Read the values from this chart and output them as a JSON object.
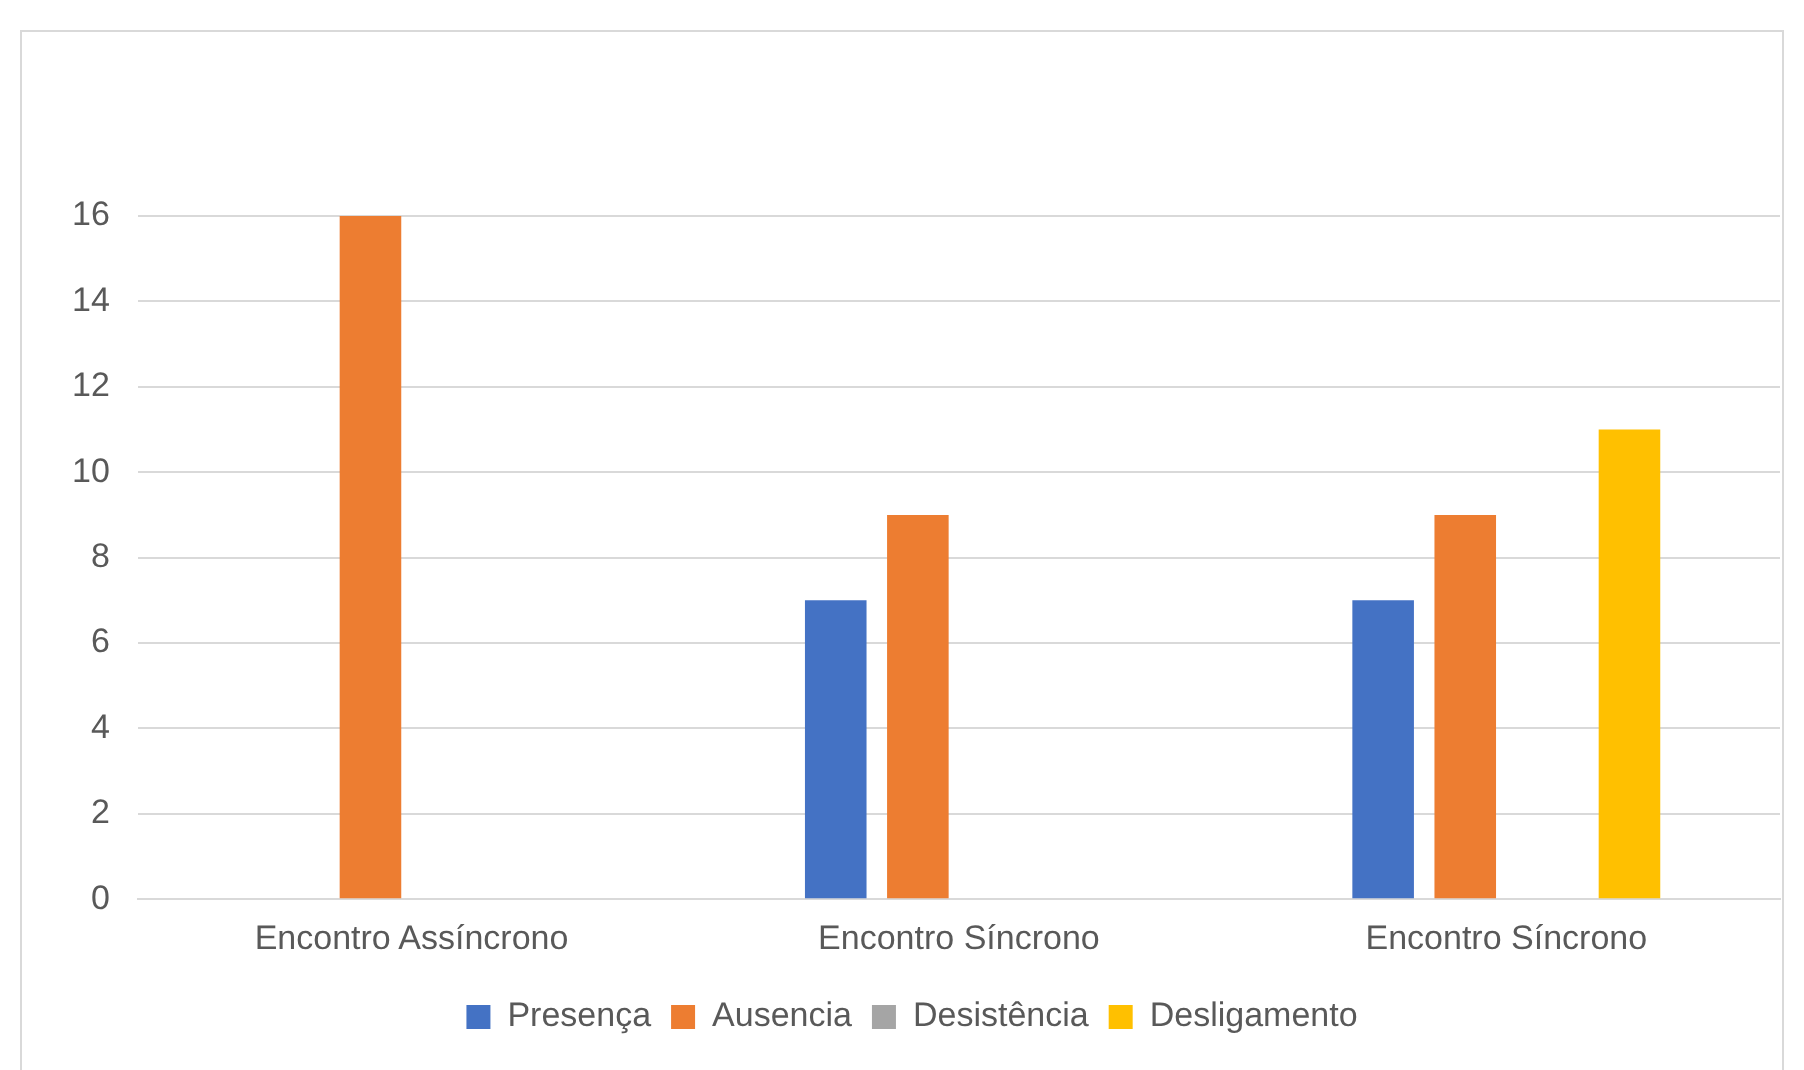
{
  "chart_data": {
    "type": "bar",
    "categories": [
      "Encontro Assíncrono",
      "Encontro Síncrono",
      "Encontro Síncrono"
    ],
    "series": [
      {
        "name": "Presença",
        "color": "#4472c4",
        "values": [
          0,
          7,
          7
        ]
      },
      {
        "name": "Ausencia",
        "color": "#ed7d31",
        "values": [
          16,
          9,
          9
        ]
      },
      {
        "name": "Desistência",
        "color": "#a5a5a5",
        "values": [
          0,
          0,
          0
        ]
      },
      {
        "name": "Desligamento",
        "color": "#ffc000",
        "values": [
          0,
          0,
          11
        ]
      }
    ],
    "ylim": [
      0,
      16
    ],
    "yticks": [
      0,
      2,
      4,
      6,
      8,
      10,
      12,
      14,
      16
    ],
    "grid": "y",
    "legend": "bottom"
  }
}
